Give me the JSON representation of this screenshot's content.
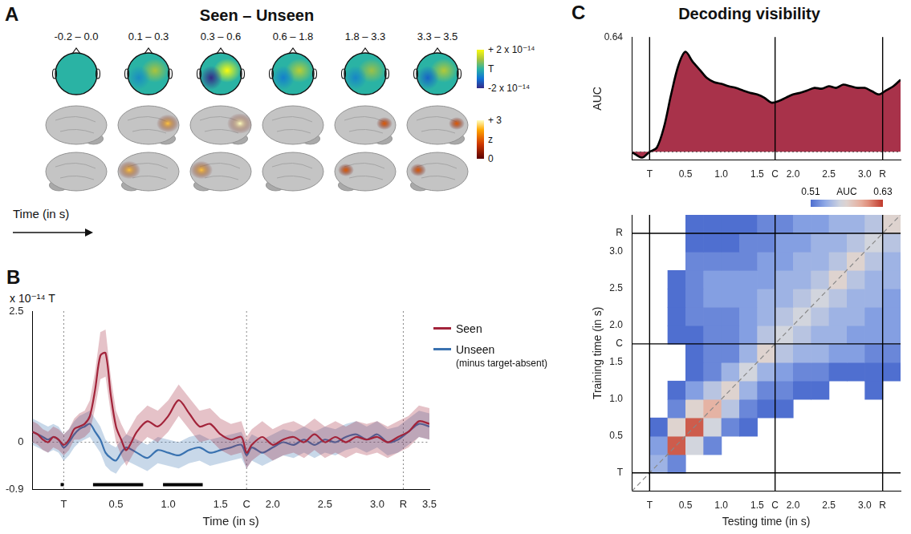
{
  "panel_A": {
    "panel_label": "A",
    "title": "Seen – Unseen",
    "time_windows": [
      "-0.2 – 0.0",
      "0.1 – 0.3",
      "0.3 – 0.6",
      "0.6 – 1.8",
      "1.8 – 3.3",
      "3.3 – 3.5"
    ],
    "topography_peak": [
      0,
      1.0,
      2.0,
      1.2,
      0.9,
      1.1
    ],
    "topography_trough": [
      0,
      -0.6,
      -2.0,
      -0.8,
      -0.7,
      -1.2
    ],
    "lateral_peak_z": [
      0,
      2.5,
      3,
      0,
      1.5,
      1.5
    ],
    "medial_peak_z": [
      0,
      2.5,
      2.5,
      0,
      1.5,
      1.5
    ],
    "colorbar_T": {
      "range": [
        -2,
        2
      ],
      "ticks": [
        {
          "value": 2,
          "label": "+ 2 x 10⁻¹⁴"
        },
        {
          "value": -2,
          "label": "-2 x 10⁻¹⁴"
        }
      ],
      "unit": "T"
    },
    "colorbar_z": {
      "range": [
        0,
        3
      ],
      "ticks": [
        {
          "value": 3,
          "label": "+ 3"
        },
        0
      ],
      "unit": "z"
    },
    "time_axis_label": "Time (in s)"
  },
  "chart_data": [
    {
      "type": "line",
      "panel_label": "B",
      "y_label": "x 10⁻¹⁴ T",
      "x_label": "Time (in s)",
      "x": [
        -0.3,
        -0.25,
        -0.2,
        -0.15,
        -0.1,
        -0.05,
        0,
        0.05,
        0.1,
        0.15,
        0.2,
        0.25,
        0.3,
        0.35,
        0.4,
        0.45,
        0.5,
        0.55,
        0.6,
        0.7,
        0.8,
        0.9,
        1.0,
        1.1,
        1.2,
        1.3,
        1.4,
        1.5,
        1.6,
        1.7,
        1.75,
        1.8,
        1.9,
        2.0,
        2.1,
        2.2,
        2.3,
        2.4,
        2.5,
        2.6,
        2.7,
        2.8,
        2.9,
        3.0,
        3.1,
        3.2,
        3.3,
        3.4,
        3.5
      ],
      "series": [
        {
          "name": "Seen",
          "color": "#a3243b",
          "values": [
            0.2,
            0.15,
            0.05,
            0.0,
            0.1,
            0.05,
            -0.05,
            0.05,
            0.25,
            0.3,
            0.35,
            0.5,
            1.0,
            1.65,
            1.7,
            0.9,
            0.3,
            0.05,
            -0.15,
            0.2,
            0.4,
            0.3,
            0.5,
            0.8,
            0.55,
            0.3,
            0.35,
            0.15,
            0.05,
            0.1,
            -0.2,
            -0.05,
            0.1,
            -0.05,
            0.05,
            0.1,
            0.0,
            0.15,
            0.0,
            0.1,
            0.0,
            0.1,
            0.05,
            0.1,
            0.0,
            0.1,
            0.2,
            0.4,
            0.35
          ],
          "error": [
            0.2,
            0.2,
            0.2,
            0.2,
            0.2,
            0.2,
            0.2,
            0.2,
            0.2,
            0.25,
            0.25,
            0.3,
            0.35,
            0.45,
            0.45,
            0.35,
            0.3,
            0.3,
            0.3,
            0.3,
            0.3,
            0.3,
            0.3,
            0.3,
            0.3,
            0.3,
            0.3,
            0.3,
            0.3,
            0.3,
            0.3,
            0.3,
            0.3,
            0.3,
            0.3,
            0.3,
            0.3,
            0.3,
            0.3,
            0.3,
            0.3,
            0.3,
            0.3,
            0.3,
            0.3,
            0.3,
            0.3,
            0.3,
            0.3
          ]
        },
        {
          "name": "Unseen",
          "subtitle": "(minus target-absent)",
          "color": "#3a72b0",
          "values": [
            0.2,
            0.15,
            0.1,
            0.05,
            0.1,
            0.05,
            -0.1,
            0.0,
            0.15,
            0.25,
            0.3,
            0.35,
            0.2,
            0.05,
            -0.2,
            -0.3,
            -0.35,
            -0.2,
            -0.1,
            -0.2,
            -0.3,
            -0.15,
            -0.2,
            -0.25,
            -0.15,
            -0.1,
            -0.2,
            -0.15,
            -0.1,
            -0.05,
            -0.25,
            -0.1,
            -0.2,
            -0.1,
            0.0,
            -0.05,
            0.05,
            -0.05,
            0.05,
            0.0,
            0.1,
            0.15,
            0.05,
            0.15,
            0.0,
            0.05,
            0.2,
            0.35,
            0.3
          ],
          "error": [
            0.25,
            0.25,
            0.25,
            0.25,
            0.25,
            0.25,
            0.25,
            0.25,
            0.25,
            0.25,
            0.25,
            0.25,
            0.25,
            0.25,
            0.25,
            0.25,
            0.25,
            0.25,
            0.25,
            0.25,
            0.25,
            0.25,
            0.25,
            0.25,
            0.25,
            0.25,
            0.25,
            0.25,
            0.25,
            0.25,
            0.25,
            0.25,
            0.25,
            0.25,
            0.25,
            0.25,
            0.25,
            0.25,
            0.25,
            0.25,
            0.25,
            0.25,
            0.25,
            0.25,
            0.25,
            0.25,
            0.25,
            0.25,
            0.25
          ]
        }
      ],
      "significant_intervals": [
        [
          -0.03,
          0.0
        ],
        [
          0.28,
          0.76
        ],
        [
          0.95,
          1.33
        ]
      ],
      "xlim": [
        -0.3,
        3.5
      ],
      "xticks": [
        {
          "value": 0,
          "label": "T"
        },
        0.5,
        {
          "value": 1,
          "label": "1.0"
        },
        1.5,
        {
          "value": 1.75,
          "label": "C"
        },
        {
          "value": 2,
          "label": "2.0"
        },
        2.5,
        {
          "value": 3,
          "label": "3.0"
        },
        {
          "value": 3.25,
          "label": "R"
        },
        3.5
      ],
      "ylim": [
        -0.9,
        2.5
      ],
      "yticks": [
        2.5,
        0,
        -0.9
      ],
      "grid": false,
      "legend": "right"
    },
    {
      "type": "area",
      "panel_label": "C",
      "title": "Decoding visibility",
      "y_label": "AUC",
      "x": [
        -0.25,
        -0.2,
        -0.1,
        0,
        0.1,
        0.2,
        0.3,
        0.4,
        0.5,
        0.6,
        0.7,
        0.8,
        0.9,
        1.0,
        1.1,
        1.2,
        1.3,
        1.4,
        1.5,
        1.6,
        1.7,
        1.8,
        1.9,
        2.0,
        2.1,
        2.2,
        2.3,
        2.4,
        2.5,
        2.6,
        2.7,
        2.8,
        2.9,
        3.0,
        3.1,
        3.2,
        3.3,
        3.4,
        3.5
      ],
      "values": [
        0.5,
        0.497,
        0.493,
        0.5,
        0.505,
        0.53,
        0.57,
        0.605,
        0.622,
        0.61,
        0.6,
        0.59,
        0.585,
        0.583,
        0.58,
        0.578,
        0.575,
        0.572,
        0.57,
        0.566,
        0.56,
        0.562,
        0.566,
        0.57,
        0.572,
        0.575,
        0.578,
        0.577,
        0.58,
        0.578,
        0.582,
        0.58,
        0.578,
        0.578,
        0.574,
        0.57,
        0.575,
        0.58,
        0.588
      ],
      "color": "#a8324a",
      "chance": 0.5,
      "xlim": [
        -0.25,
        3.5
      ],
      "xticks": [
        {
          "value": 0,
          "label": "T"
        },
        0.5,
        {
          "value": 1,
          "label": "1.0"
        },
        1.5,
        {
          "value": 1.75,
          "label": "C"
        },
        {
          "value": 2,
          "label": "2.0"
        },
        2.5,
        {
          "value": 3,
          "label": "3.0"
        },
        {
          "value": 3.25,
          "label": "R"
        }
      ],
      "ylim": [
        0.49,
        0.64
      ],
      "yticks": [
        0.64
      ],
      "grid": false
    },
    {
      "type": "heatmap",
      "x_label": "Testing time (in s)",
      "y_label": "Training time (in s)",
      "x": [
        -0.125,
        0.125,
        0.375,
        0.625,
        0.875,
        1.125,
        1.375,
        1.625,
        1.875,
        2.125,
        2.375,
        2.625,
        2.875,
        3.125,
        3.375
      ],
      "y": [
        -0.125,
        0.125,
        0.375,
        0.625,
        0.875,
        1.125,
        1.375,
        1.625,
        1.875,
        2.125,
        2.375,
        2.625,
        2.875,
        3.125,
        3.375
      ],
      "values": [
        [
          0.5,
          0.5,
          0.5,
          0.5,
          0.5,
          0.5,
          0.5,
          0.5,
          0.5,
          0.5,
          0.5,
          0.5,
          0.5,
          0.5,
          0.5
        ],
        [
          0.5,
          0.54,
          0.52,
          0.5,
          0.5,
          0.5,
          0.5,
          0.5,
          0.5,
          0.5,
          0.5,
          0.5,
          0.5,
          0.5,
          0.5
        ],
        [
          0.5,
          0.53,
          0.62,
          0.56,
          0.52,
          0.5,
          0.5,
          0.5,
          0.5,
          0.5,
          0.5,
          0.5,
          0.5,
          0.5,
          0.5
        ],
        [
          0.5,
          0.51,
          0.57,
          0.62,
          0.56,
          0.52,
          0.51,
          0.5,
          0.5,
          0.5,
          0.5,
          0.5,
          0.5,
          0.5,
          0.5
        ],
        [
          0.5,
          0.5,
          0.52,
          0.57,
          0.59,
          0.55,
          0.52,
          0.51,
          0.51,
          0.5,
          0.5,
          0.5,
          0.5,
          0.5,
          0.5
        ],
        [
          0.5,
          0.5,
          0.51,
          0.53,
          0.55,
          0.57,
          0.54,
          0.52,
          0.52,
          0.51,
          0.51,
          0.5,
          0.5,
          0.51,
          0.5
        ],
        [
          0.5,
          0.5,
          0.5,
          0.51,
          0.52,
          0.54,
          0.56,
          0.54,
          0.53,
          0.52,
          0.52,
          0.51,
          0.51,
          0.51,
          0.51
        ],
        [
          0.5,
          0.5,
          0.5,
          0.51,
          0.52,
          0.52,
          0.54,
          0.57,
          0.55,
          0.54,
          0.54,
          0.53,
          0.53,
          0.52,
          0.52
        ],
        [
          0.5,
          0.5,
          0.51,
          0.51,
          0.52,
          0.52,
          0.53,
          0.55,
          0.56,
          0.55,
          0.54,
          0.54,
          0.53,
          0.53,
          0.53
        ],
        [
          0.5,
          0.5,
          0.51,
          0.52,
          0.52,
          0.52,
          0.53,
          0.54,
          0.55,
          0.56,
          0.55,
          0.54,
          0.54,
          0.53,
          0.53
        ],
        [
          0.5,
          0.5,
          0.51,
          0.52,
          0.53,
          0.53,
          0.53,
          0.54,
          0.54,
          0.55,
          0.56,
          0.55,
          0.54,
          0.54,
          0.53
        ],
        [
          0.5,
          0.5,
          0.51,
          0.52,
          0.53,
          0.53,
          0.53,
          0.53,
          0.54,
          0.54,
          0.55,
          0.57,
          0.55,
          0.54,
          0.54
        ],
        [
          0.5,
          0.5,
          0.5,
          0.52,
          0.52,
          0.52,
          0.52,
          0.53,
          0.53,
          0.54,
          0.54,
          0.55,
          0.57,
          0.55,
          0.54
        ],
        [
          0.5,
          0.5,
          0.5,
          0.51,
          0.51,
          0.51,
          0.52,
          0.52,
          0.53,
          0.53,
          0.54,
          0.54,
          0.55,
          0.56,
          0.55
        ],
        [
          0.5,
          0.5,
          0.5,
          0.51,
          0.51,
          0.51,
          0.51,
          0.52,
          0.52,
          0.53,
          0.53,
          0.54,
          0.54,
          0.55,
          0.57
        ]
      ],
      "xlim": [
        -0.25,
        3.5
      ],
      "ylim": [
        -0.25,
        3.5
      ],
      "xticks": [
        {
          "value": 0,
          "label": "T"
        },
        0.5,
        {
          "value": 1,
          "label": "1.0"
        },
        1.5,
        {
          "value": 1.75,
          "label": "C"
        },
        {
          "value": 2,
          "label": "2.0"
        },
        2.5,
        {
          "value": 3,
          "label": "3.0"
        },
        {
          "value": 3.25,
          "label": "R"
        }
      ],
      "yticks": [
        {
          "value": 0,
          "label": "T"
        },
        0.5,
        {
          "value": 1,
          "label": "1.0"
        },
        1.5,
        {
          "value": 1.75,
          "label": "C"
        },
        {
          "value": 2,
          "label": "2.0"
        },
        2.5,
        {
          "value": 3,
          "label": "3.0"
        },
        {
          "value": 3.25,
          "label": "R"
        }
      ],
      "colorbar": {
        "label": "AUC",
        "range": [
          0.51,
          0.63
        ],
        "ticks": [
          0.51,
          0.63
        ]
      }
    }
  ]
}
